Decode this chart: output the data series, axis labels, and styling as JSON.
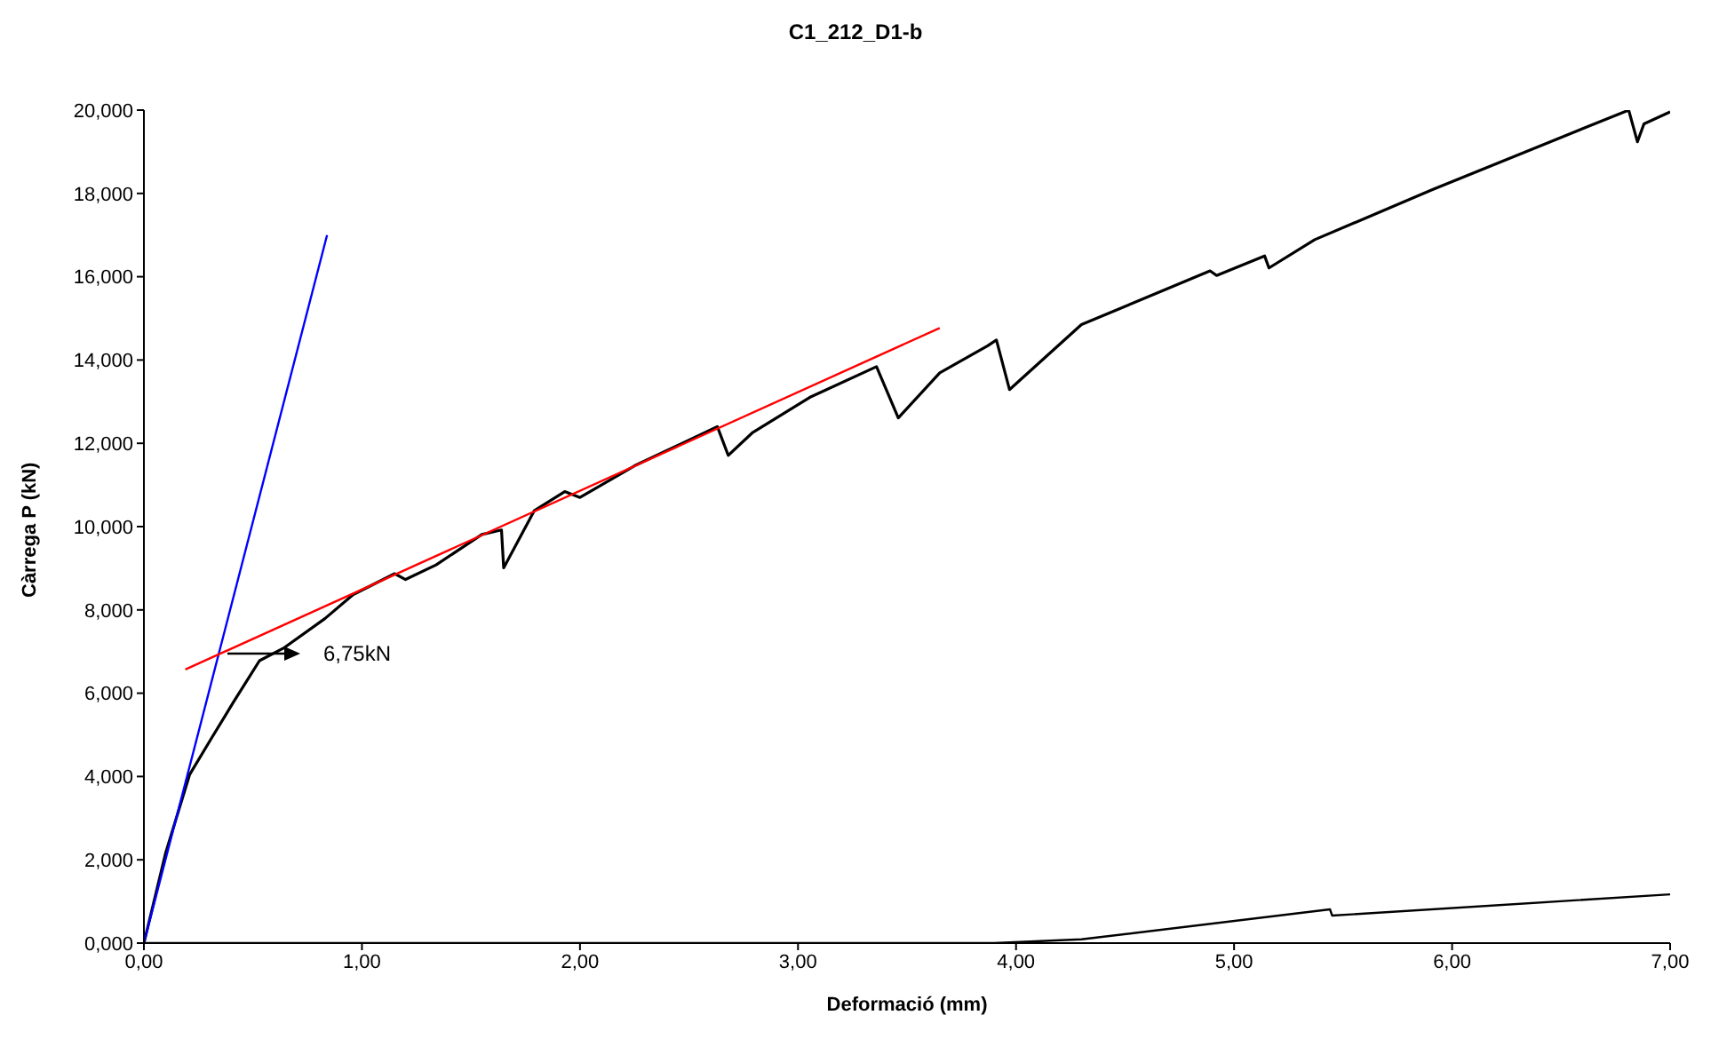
{
  "chart_data": {
    "type": "line",
    "title": "C1_212_D1-b",
    "xlabel": "Deformació (mm)",
    "ylabel": "Càrrega P (kN)",
    "xlim": [
      0,
      7
    ],
    "ylim": [
      0,
      20
    ],
    "xticks": [
      {
        "value": 0,
        "label": "0,00"
      },
      {
        "value": 1,
        "label": "1,00"
      },
      {
        "value": 2,
        "label": "2,00"
      },
      {
        "value": 3,
        "label": "3,00"
      },
      {
        "value": 4,
        "label": "4,00"
      },
      {
        "value": 5,
        "label": "5,00"
      },
      {
        "value": 6,
        "label": "6,00"
      },
      {
        "value": 7,
        "label": "7,00"
      }
    ],
    "yticks": [
      {
        "value": 0,
        "label": "0,000"
      },
      {
        "value": 2,
        "label": "2,000"
      },
      {
        "value": 4,
        "label": "4,000"
      },
      {
        "value": 6,
        "label": "6,000"
      },
      {
        "value": 8,
        "label": "8,000"
      },
      {
        "value": 10,
        "label": "10,000"
      },
      {
        "value": 12,
        "label": "12,000"
      },
      {
        "value": 14,
        "label": "14,000"
      },
      {
        "value": 16,
        "label": "16,000"
      },
      {
        "value": 18,
        "label": "18,000"
      },
      {
        "value": 20,
        "label": "20,000"
      }
    ],
    "grid": false,
    "legend": false,
    "marker": "none",
    "line_style": "solid",
    "series": [
      {
        "color": "#000000",
        "x": [
          0,
          0.1,
          0.21,
          0.31,
          0.41,
          0.53,
          0.64,
          0.83,
          0.96,
          1.15,
          1.2,
          1.34,
          1.55,
          1.64,
          1.65,
          1.79,
          1.93,
          2.0,
          2.25,
          2.63,
          2.68,
          2.79,
          3.06,
          3.36,
          3.46,
          3.65,
          3.87,
          3.91,
          3.97,
          4.3,
          4.89,
          4.92,
          5.14,
          5.16,
          5.37,
          5.91,
          6.45,
          6.81,
          6.85,
          6.88,
          7.0
        ],
        "values": [
          0,
          2.17,
          4.05,
          4.92,
          5.78,
          6.78,
          7.08,
          7.79,
          8.37,
          8.87,
          8.73,
          9.08,
          9.81,
          9.92,
          9.01,
          10.38,
          10.84,
          10.7,
          11.46,
          12.4,
          11.71,
          12.25,
          13.12,
          13.84,
          12.61,
          13.69,
          14.34,
          14.48,
          13.29,
          14.85,
          16.14,
          16.03,
          16.5,
          16.21,
          16.89,
          18.09,
          19.24,
          20.0,
          19.24,
          19.67,
          19.96
        ]
      },
      {
        "color": "#000000",
        "x": [
          0,
          3.9,
          4.3,
          5.44,
          5.45,
          7.0
        ],
        "values": [
          0,
          0,
          0.09,
          0.81,
          0.66,
          1.17
        ]
      },
      {
        "color": "#0000ff",
        "x": [
          0,
          0.84
        ],
        "values": [
          0,
          17.0
        ]
      },
      {
        "color": "#ff0000",
        "x": [
          0.19,
          3.65
        ],
        "values": [
          6.57,
          14.77
        ]
      }
    ],
    "annotations": [
      "6,75kN"
    ]
  }
}
